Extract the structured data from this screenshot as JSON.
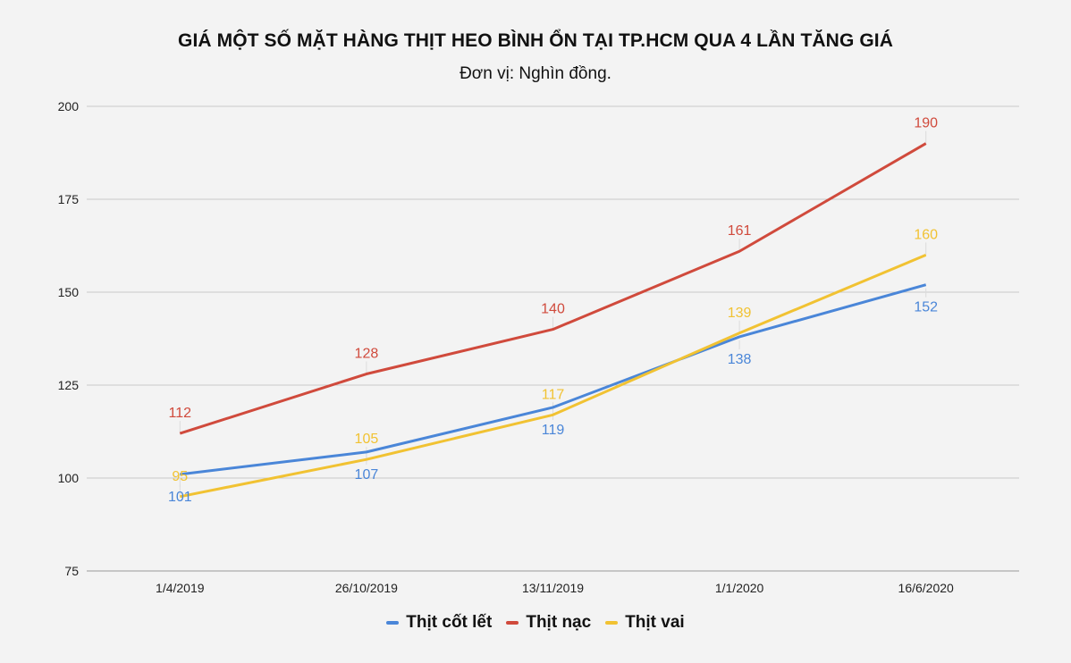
{
  "header": {
    "title": "GIÁ MỘT SỐ MẶT HÀNG THỊT HEO BÌNH ỔN TẠI TP.HCM QUA 4 LẦN TĂNG GIÁ",
    "subtitle": "Đơn vị: Nghìn đồng."
  },
  "legend": [
    {
      "label": "Thịt cốt lết",
      "color": "#4a86d8"
    },
    {
      "label": "Thịt nạc",
      "color": "#d04a3c"
    },
    {
      "label": "Thịt vai",
      "color": "#f1c232"
    }
  ],
  "chart_data": {
    "type": "line",
    "title": "GIÁ MỘT SỐ MẶT HÀNG THỊT HEO BÌNH ỔN TẠI TP.HCM QUA 4 LẦN TĂNG GIÁ",
    "subtitle": "Đơn vị: Nghìn đồng.",
    "xlabel": "",
    "ylabel": "",
    "categories": [
      "1/4/2019",
      "26/10/2019",
      "13/11/2019",
      "1/1/2020",
      "16/6/2020"
    ],
    "series": [
      {
        "name": "Thịt cốt lết",
        "color": "#4a86d8",
        "values": [
          101,
          107,
          119,
          138,
          152
        ],
        "label_pos": [
          "below",
          "below",
          "below",
          "below",
          "below"
        ]
      },
      {
        "name": "Thịt nạc",
        "color": "#d04a3c",
        "values": [
          112,
          128,
          140,
          161,
          190
        ],
        "label_pos": [
          "above",
          "above",
          "above",
          "above",
          "above"
        ]
      },
      {
        "name": "Thịt vai",
        "color": "#f1c232",
        "values": [
          95,
          105,
          117,
          139,
          160
        ],
        "label_pos": [
          "above",
          "above",
          "above",
          "above",
          "above"
        ]
      }
    ],
    "yticks": [
      75,
      100,
      125,
      150,
      175,
      200
    ],
    "ylim": [
      75,
      200
    ],
    "grid": true,
    "legend_position": "bottom"
  }
}
